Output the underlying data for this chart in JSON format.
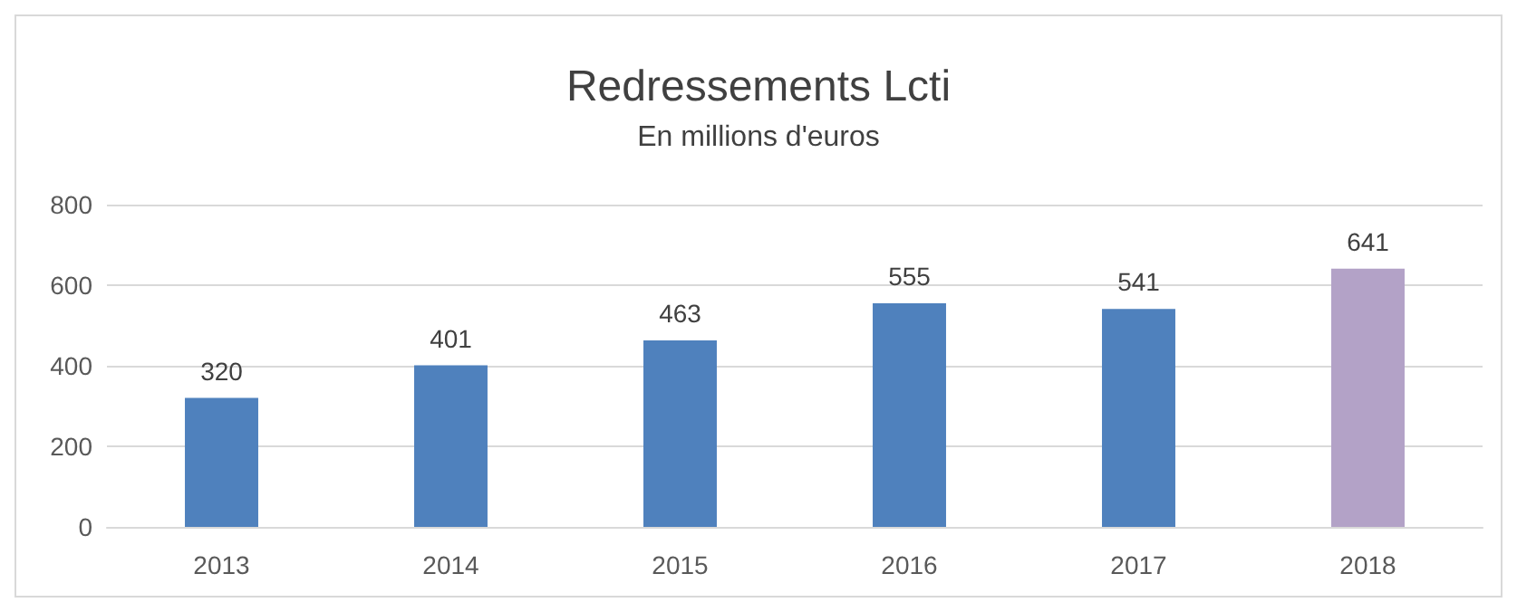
{
  "chart_data": {
    "type": "bar",
    "title": "Redressements Lcti",
    "subtitle": "En millions d'euros",
    "categories": [
      "2013",
      "2014",
      "2015",
      "2016",
      "2017",
      "2018"
    ],
    "values": [
      320,
      401,
      463,
      555,
      541,
      641
    ],
    "colors": [
      "#4f81bd",
      "#4f81bd",
      "#4f81bd",
      "#4f81bd",
      "#4f81bd",
      "#b3a2c7"
    ],
    "ylim": [
      0,
      800
    ],
    "yticks": [
      0,
      200,
      400,
      600,
      800
    ],
    "grid": "y",
    "data_labels": true
  }
}
